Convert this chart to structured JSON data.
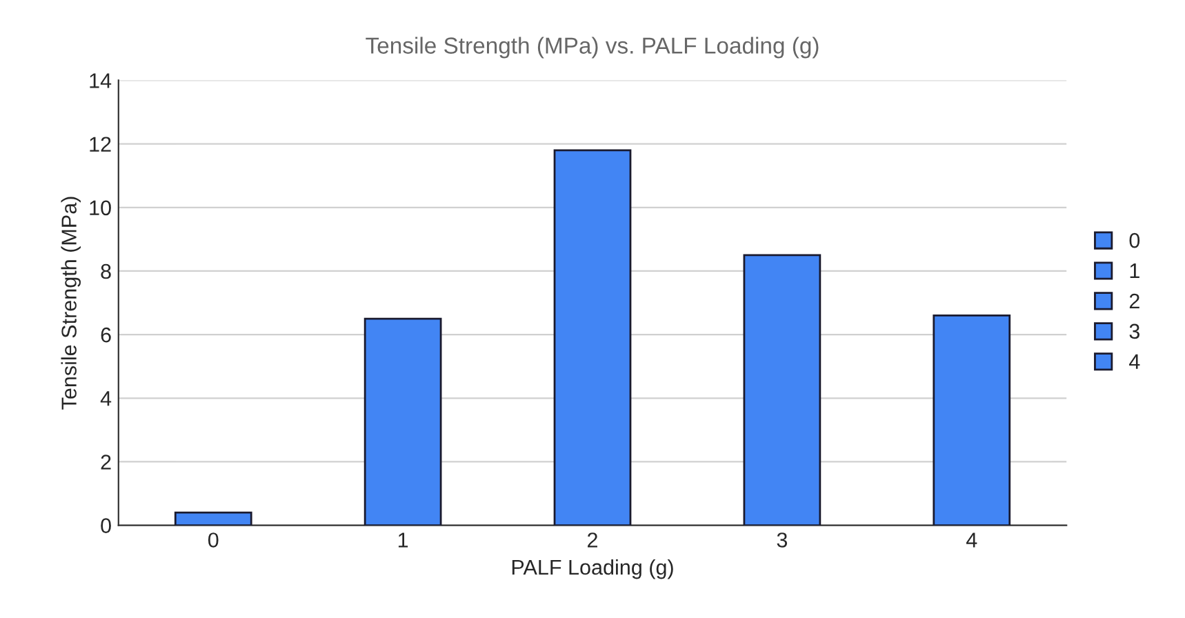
{
  "chart_data": {
    "type": "bar",
    "title": "Tensile Strength (MPa) vs. PALF Loading (g)",
    "xlabel": "PALF Loading (g)",
    "ylabel": "Tensile Strength (MPa)",
    "categories": [
      "0",
      "1",
      "2",
      "3",
      "4"
    ],
    "series": [
      {
        "name": "0",
        "color": "#4285f4",
        "values": [
          0.4,
          null,
          null,
          null,
          null
        ]
      },
      {
        "name": "1",
        "color": "#4285f4",
        "values": [
          null,
          6.5,
          null,
          null,
          null
        ]
      },
      {
        "name": "2",
        "color": "#4285f4",
        "values": [
          null,
          null,
          11.8,
          null,
          null
        ]
      },
      {
        "name": "3",
        "color": "#4285f4",
        "values": [
          null,
          null,
          null,
          8.5,
          null
        ]
      },
      {
        "name": "4",
        "color": "#4285f4",
        "values": [
          null,
          null,
          null,
          null,
          6.6
        ]
      }
    ],
    "ylim": [
      0,
      14
    ],
    "yticks": [
      0,
      2,
      4,
      6,
      8,
      10,
      12,
      14
    ],
    "grid": "y",
    "legend": "right"
  }
}
